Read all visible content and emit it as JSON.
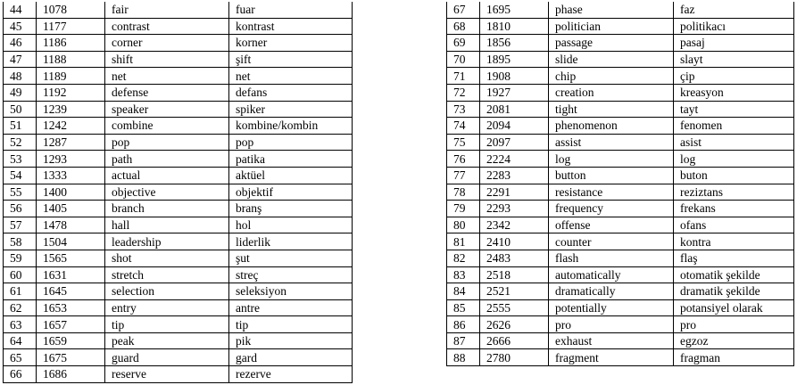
{
  "tables": [
    {
      "rows": [
        [
          "44",
          "1078",
          "fair",
          "fuar"
        ],
        [
          "45",
          "1177",
          "contrast",
          "kontrast"
        ],
        [
          "46",
          "1186",
          "corner",
          "korner"
        ],
        [
          "47",
          "1188",
          "shift",
          "şift"
        ],
        [
          "48",
          "1189",
          "net",
          "net"
        ],
        [
          "49",
          "1192",
          "defense",
          "defans"
        ],
        [
          "50",
          "1239",
          "speaker",
          "spiker"
        ],
        [
          "51",
          "1242",
          "combine",
          "kombine/kombin"
        ],
        [
          "52",
          "1287",
          "pop",
          "pop"
        ],
        [
          "53",
          "1293",
          "path",
          "patika"
        ],
        [
          "54",
          "1333",
          "actual",
          "aktüel"
        ],
        [
          "55",
          "1400",
          "objective",
          "objektif"
        ],
        [
          "56",
          "1405",
          "branch",
          "branş"
        ],
        [
          "57",
          "1478",
          "hall",
          "hol"
        ],
        [
          "58",
          "1504",
          "leadership",
          "liderlik"
        ],
        [
          "59",
          "1565",
          "shot",
          "şut"
        ],
        [
          "60",
          "1631",
          "stretch",
          "streç"
        ],
        [
          "61",
          "1645",
          "selection",
          "seleksiyon"
        ],
        [
          "62",
          "1653",
          "entry",
          "antre"
        ],
        [
          "63",
          "1657",
          "tip",
          "tip"
        ],
        [
          "64",
          "1659",
          "peak",
          "pik"
        ],
        [
          "65",
          "1675",
          "guard",
          "gard"
        ],
        [
          "66",
          "1686",
          "reserve",
          "rezerve"
        ]
      ]
    },
    {
      "rows": [
        [
          "67",
          "1695",
          "phase",
          "faz"
        ],
        [
          "68",
          "1810",
          "politician",
          "politikacı"
        ],
        [
          "69",
          "1856",
          "passage",
          "pasaj"
        ],
        [
          "70",
          "1895",
          "slide",
          "slayt"
        ],
        [
          "71",
          "1908",
          "chip",
          "çip"
        ],
        [
          "72",
          "1927",
          "creation",
          "kreasyon"
        ],
        [
          "73",
          "2081",
          "tight",
          "tayt"
        ],
        [
          "74",
          "2094",
          "phenomenon",
          "fenomen"
        ],
        [
          "75",
          "2097",
          "assist",
          "asist"
        ],
        [
          "76",
          "2224",
          "log",
          "log"
        ],
        [
          "77",
          "2283",
          "button",
          "buton"
        ],
        [
          "78",
          "2291",
          "resistance",
          "reziztans"
        ],
        [
          "79",
          "2293",
          "frequency",
          "frekans"
        ],
        [
          "80",
          "2342",
          "offense",
          "ofans"
        ],
        [
          "81",
          "2410",
          "counter",
          "kontra"
        ],
        [
          "82",
          "2483",
          "flash",
          "flaş"
        ],
        [
          "83",
          "2518",
          "automatically",
          "otomatik şekilde"
        ],
        [
          "84",
          "2521",
          "dramatically",
          "dramatik şekilde"
        ],
        [
          "85",
          "2555",
          "potentially",
          "potansiyel olarak"
        ],
        [
          "86",
          "2626",
          "pro",
          "pro"
        ],
        [
          "87",
          "2666",
          "exhaust",
          "egzoz"
        ],
        [
          "88",
          "2780",
          "fragment",
          "fragman"
        ]
      ]
    }
  ]
}
